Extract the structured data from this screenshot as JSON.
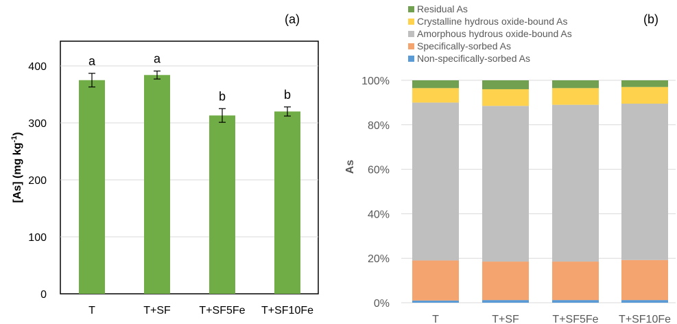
{
  "chart_data": [
    {
      "type": "bar",
      "panel_label": "(a)",
      "ylabel": "[As] (mg kg",
      "ylabel_sup": "-1",
      "ylabel_end": ")",
      "categories": [
        "T",
        "T+SF",
        "T+SF5Fe",
        "T+SF10Fe"
      ],
      "values": [
        375,
        384,
        313,
        320
      ],
      "errors": [
        12,
        7,
        12,
        8
      ],
      "significance_letters": [
        "a",
        "a",
        "b",
        "b"
      ],
      "ylim": [
        0,
        400
      ],
      "yticks": [
        "0",
        "100",
        "200",
        "300",
        "400"
      ],
      "bar_color": "#70AD47",
      "grid": true
    },
    {
      "type": "stacked_bar",
      "panel_label": "(b)",
      "ylabel": "As",
      "categories": [
        "T",
        "T+SF",
        "T+SF5Fe",
        "T+SF10Fe"
      ],
      "ylim": [
        0,
        100
      ],
      "yticks": [
        "0%",
        "20%",
        "40%",
        "60%",
        "80%",
        "100%"
      ],
      "grid": true,
      "legend_position": "top",
      "series": [
        {
          "name": "Non-specifically-sorbed As",
          "color": "#5B9BD5",
          "values": [
            1,
            1.2,
            1.2,
            1.2
          ]
        },
        {
          "name": "Specifically-sorbed As",
          "color": "#F4A46F",
          "values": [
            18,
            17.3,
            17.3,
            18
          ]
        },
        {
          "name": "Amorphous hydrous oxide-bound As",
          "color": "#BFBFBF",
          "values": [
            71,
            70,
            70.5,
            70.3
          ]
        },
        {
          "name": "Crystalline hydrous oxide-bound As",
          "color": "#FFD24D",
          "values": [
            6.5,
            7.5,
            7.5,
            7.5
          ]
        },
        {
          "name": "Residual As",
          "color": "#70A050",
          "values": [
            3.5,
            4,
            3.5,
            3
          ]
        }
      ]
    }
  ]
}
